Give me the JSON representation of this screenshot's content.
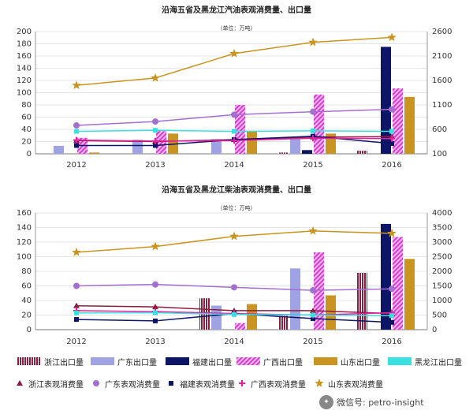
{
  "colors": {
    "zj_bar": "#8b1e3f",
    "gd_bar": "#9fa3e3",
    "fj_bar": "#0d1566",
    "gx_bar": "#d33ecf",
    "sd_bar": "#c9941f",
    "hlj_bar": "#39e0e0",
    "zj_line": "#8b1e3f",
    "gd_line": "#a46fcf",
    "fj_line": "#0d1566",
    "gx_line": "#e91ea2",
    "sd_line": "#c9941f",
    "hlj_line": "#39e0e0"
  },
  "chart_data": [
    {
      "type": "bar",
      "title": "沿海五省及黑龙江汽油表观消费量、出口量",
      "unit": "（单位：万吨）",
      "categories": [
        "2012",
        "2013",
        "2014",
        "2015",
        "2016"
      ],
      "ylim_left": [
        0,
        200
      ],
      "yticks_left": [
        "0",
        "20",
        "40",
        "60",
        "80",
        "100",
        "120",
        "140",
        "160",
        "180",
        "200"
      ],
      "ylim_right": [
        100,
        2600
      ],
      "yticks_right": [
        "100",
        "600",
        "1100",
        "1600",
        "2100",
        "2600"
      ],
      "bar_series": [
        {
          "key": "zj",
          "name": "浙江出口量",
          "values": [
            0,
            0,
            0,
            2,
            5
          ]
        },
        {
          "key": "gd",
          "name": "广东出口量",
          "values": [
            13,
            23,
            24,
            25,
            0
          ]
        },
        {
          "key": "fj",
          "name": "福建出口量",
          "values": [
            0,
            0,
            0,
            6,
            175
          ]
        },
        {
          "key": "gx",
          "name": "广西出口量",
          "values": [
            26,
            37,
            80,
            97,
            107
          ]
        },
        {
          "key": "sd",
          "name": "山东出口量",
          "values": [
            2,
            33,
            37,
            33,
            93
          ]
        },
        {
          "key": "hlj",
          "name": "黑龙江出口量",
          "values": [
            0,
            0,
            0,
            0,
            0
          ]
        }
      ],
      "line_series": [
        {
          "key": "zj",
          "name": "浙江表观消费量",
          "marker": "triangle",
          "values": [
            370,
            350,
            390,
            440,
            450
          ]
        },
        {
          "key": "gd",
          "name": "广东表观消费量",
          "marker": "circle",
          "values": [
            680,
            760,
            900,
            960,
            1010
          ]
        },
        {
          "key": "fj",
          "name": "福建表观消费量",
          "marker": "square",
          "values": [
            270,
            270,
            390,
            460,
            310
          ]
        },
        {
          "key": "gx",
          "name": "广西表观消费量",
          "marker": "plus",
          "values": [
            380,
            360,
            370,
            420,
            410
          ]
        },
        {
          "key": "sd",
          "name": "山东表观消费量",
          "marker": "star",
          "values": [
            1500,
            1650,
            2150,
            2380,
            2480
          ]
        },
        {
          "key": "hlj",
          "name": "黑龙江表观消费量",
          "marker": "square",
          "values": [
            560,
            580,
            560,
            570,
            560
          ]
        }
      ]
    },
    {
      "type": "bar",
      "title": "沿海五省及黑龙江柴油表观消费量、出口量",
      "unit": "（单位：万吨）",
      "categories": [
        "2012",
        "2013",
        "2014",
        "2015",
        "2016"
      ],
      "ylim_left": [
        0,
        160
      ],
      "yticks_left": [
        "0",
        "20",
        "40",
        "60",
        "80",
        "100",
        "120",
        "140",
        "160"
      ],
      "ylim_right": [
        0,
        4000
      ],
      "yticks_right": [
        "0",
        "500",
        "1000",
        "1500",
        "2000",
        "2500",
        "3000",
        "3500",
        "4000"
      ],
      "bar_series": [
        {
          "key": "zj",
          "name": "浙江出口量",
          "values": [
            0,
            0,
            43,
            19,
            78
          ]
        },
        {
          "key": "gd",
          "name": "广东出口量",
          "values": [
            0,
            0,
            33,
            84,
            0
          ]
        },
        {
          "key": "fj",
          "name": "福建出口量",
          "values": [
            0,
            0,
            0,
            0,
            145
          ]
        },
        {
          "key": "gx",
          "name": "广西出口量",
          "values": [
            0,
            0,
            9,
            106,
            127
          ]
        },
        {
          "key": "sd",
          "name": "山东出口量",
          "values": [
            0,
            0,
            35,
            47,
            97
          ]
        },
        {
          "key": "hlj",
          "name": "黑龙江出口量",
          "values": [
            0,
            0,
            0,
            0,
            0
          ]
        }
      ],
      "line_series": [
        {
          "key": "zj",
          "name": "浙江表观消费量",
          "marker": "triangle",
          "values": [
            820,
            780,
            650,
            650,
            550
          ]
        },
        {
          "key": "gd",
          "name": "广东表观消费量",
          "marker": "circle",
          "values": [
            1500,
            1550,
            1450,
            1350,
            1400
          ]
        },
        {
          "key": "fj",
          "name": "福建表观消费量",
          "marker": "square",
          "values": [
            350,
            300,
            550,
            380,
            250
          ]
        },
        {
          "key": "gx",
          "name": "广西表观消费量",
          "marker": "plus",
          "values": [
            650,
            620,
            550,
            500,
            580
          ]
        },
        {
          "key": "sd",
          "name": "山东表观消费量",
          "marker": "star",
          "values": [
            2650,
            2850,
            3200,
            3380,
            3300
          ]
        },
        {
          "key": "hlj",
          "name": "黑龙江表观消费量",
          "marker": "square",
          "values": [
            570,
            580,
            520,
            500,
            480
          ]
        }
      ]
    }
  ],
  "legend": {
    "bars": [
      {
        "key": "zj",
        "label": "浙江出口量"
      },
      {
        "key": "gd",
        "label": "广东出口量"
      },
      {
        "key": "fj",
        "label": "福建出口量"
      },
      {
        "key": "gx",
        "label": "广西出口量"
      },
      {
        "key": "sd",
        "label": "山东出口量"
      },
      {
        "key": "hlj",
        "label": "黑龙江出口量"
      }
    ],
    "lines": [
      {
        "key": "zj",
        "marker": "triangle",
        "label": "浙江表观消费量"
      },
      {
        "key": "gd",
        "marker": "circle",
        "label": "广东表观消费量"
      },
      {
        "key": "fj",
        "marker": "square",
        "label": "福建表观消费量"
      },
      {
        "key": "gx",
        "marker": "plus",
        "label": "广西表观消费量"
      },
      {
        "key": "sd",
        "marker": "star",
        "label": "山东表观消费量"
      }
    ]
  },
  "watermark": {
    "text": "微信号: petro-insight"
  }
}
